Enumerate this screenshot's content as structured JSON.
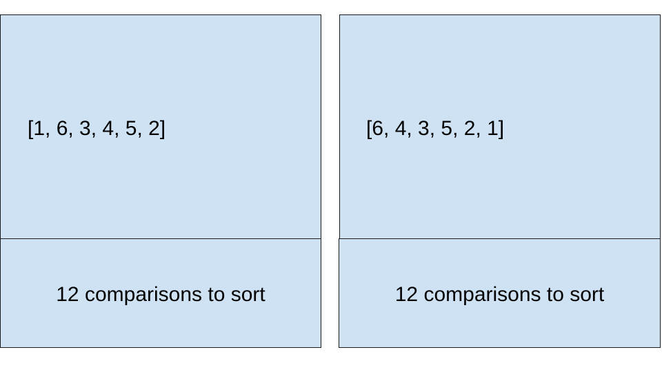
{
  "panels": [
    {
      "array_label": "[1, 6, 3, 4, 5, 2]",
      "caption": "12 comparisons to sort"
    },
    {
      "array_label": "[6, 4, 3, 5, 2, 1]",
      "caption": "12 comparisons to sort"
    }
  ],
  "colors": {
    "box_fill": "#cfe2f3",
    "box_border": "#1a1a1a",
    "text": "#000000"
  }
}
